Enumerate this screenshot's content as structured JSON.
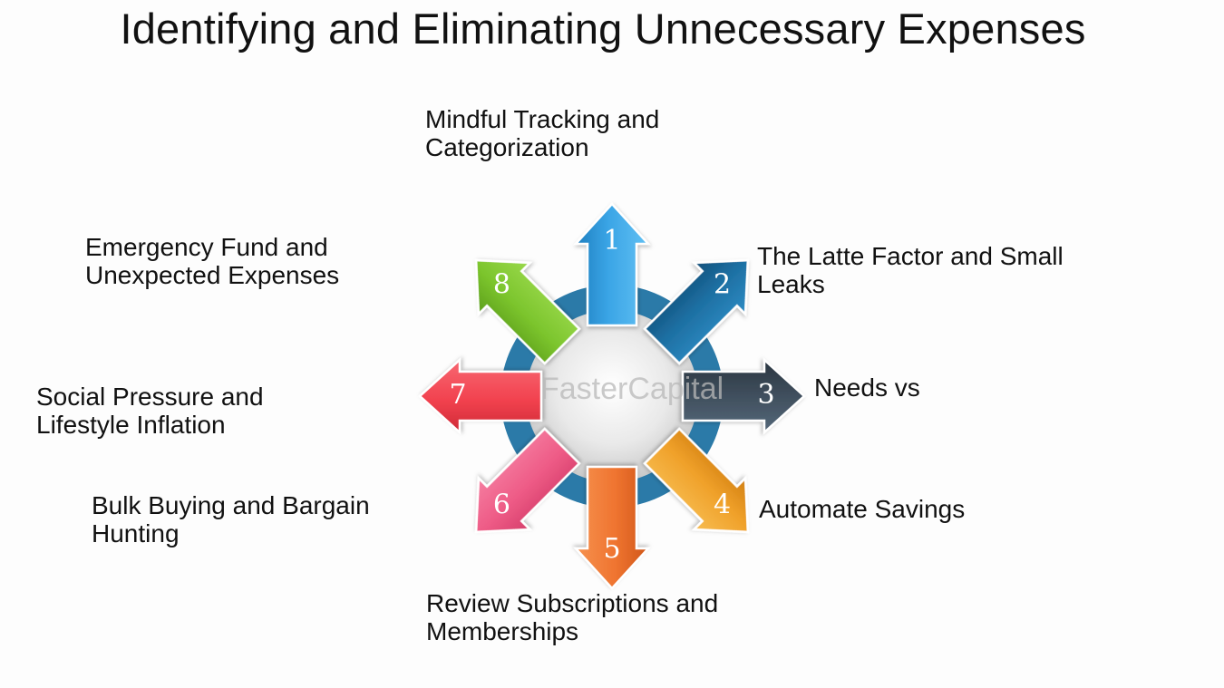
{
  "title": "Identifying and Eliminating Unnecessary Expenses",
  "watermark": "FasterCapital",
  "steps": [
    {
      "number": "1",
      "label": "Mindful Tracking and\nCategorization",
      "color": "#3aa5e6",
      "color_light": "#62c0f3",
      "color_dark": "#1f7fc0"
    },
    {
      "number": "2",
      "label": "The Latte Factor and Small\nLeaks",
      "color": "#1d6fa2",
      "color_light": "#2e8cc4",
      "color_dark": "#12507a"
    },
    {
      "number": "3",
      "label": "Needs vs",
      "color": "#3e4d5b",
      "color_light": "#55687a",
      "color_dark": "#2a3540"
    },
    {
      "number": "4",
      "label": "Automate Savings",
      "color": "#f0a12a",
      "color_light": "#f7bd52",
      "color_dark": "#d17f12"
    },
    {
      "number": "5",
      "label": "Review Subscriptions and\nMemberships",
      "color": "#ef7430",
      "color_light": "#f6924f",
      "color_dark": "#d0571a"
    },
    {
      "number": "6",
      "label": "Bulk Buying and Bargain\nHunting",
      "color": "#ee5b86",
      "color_light": "#f57ea1",
      "color_dark": "#d53e6b"
    },
    {
      "number": "7",
      "label": "Social Pressure and\nLifestyle Inflation",
      "color": "#f2424f",
      "color_light": "#f76872",
      "color_dark": "#cf2a36"
    },
    {
      "number": "8",
      "label": "Emergency Fund and\nUnexpected Expenses",
      "color": "#7cc52d",
      "color_light": "#9ad94c",
      "color_dark": "#5c9e1b"
    }
  ],
  "ring_color": "#2b7aa8",
  "center_color": "#e4e4e4"
}
